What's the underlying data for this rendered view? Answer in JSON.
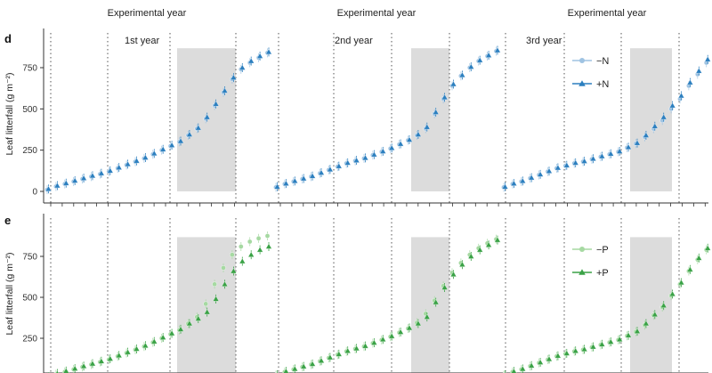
{
  "header": {
    "xlabels": [
      "Experimental year",
      "Experimental year",
      "Experimental year"
    ]
  },
  "chart_data": [
    {
      "type": "scatter",
      "panel": "d",
      "ylabel": "Leaf litterfall (g m⁻²)",
      "ylim": [
        0,
        900
      ],
      "yticks": [
        0,
        250,
        500,
        750
      ],
      "year_labels": [
        "1st year",
        "2nd year",
        "3rd year"
      ],
      "legend_position": "right",
      "colors": {
        "control": "#9fc3e2",
        "treatment": "#2c7fbf",
        "shade": "#dcdcdc",
        "divider": "#555555"
      },
      "series": [
        {
          "name": "−N",
          "marker": "circle",
          "values": [
            [
              10,
              30,
              45,
              60,
              75,
              90,
              105,
              120,
              140,
              160,
              180,
              200,
              225,
              250,
              275,
              300,
              340,
              380,
              440,
              520,
              600,
              680,
              740,
              780,
              810,
              840
            ],
            [
              25,
              45,
              60,
              75,
              90,
              110,
              130,
              150,
              170,
              185,
              200,
              220,
              240,
              260,
              285,
              310,
              340,
              380,
              470,
              560,
              640,
              700,
              750,
              790,
              820,
              850
            ],
            [
              25,
              45,
              60,
              80,
              100,
              120,
              140,
              155,
              170,
              180,
              195,
              210,
              225,
              240,
              265,
              290,
              330,
              380,
              430,
              500,
              560,
              640,
              710,
              780,
              830,
              860
            ]
          ]
        },
        {
          "name": "+N",
          "marker": "triangle",
          "values": [
            [
              15,
              35,
              50,
              65,
              80,
              95,
              110,
              125,
              145,
              165,
              185,
              205,
              230,
              255,
              280,
              305,
              345,
              385,
              450,
              530,
              610,
              690,
              750,
              790,
              820,
              845
            ],
            [
              28,
              48,
              63,
              78,
              93,
              113,
              133,
              153,
              173,
              188,
              203,
              223,
              243,
              263,
              288,
              313,
              345,
              390,
              480,
              570,
              650,
              705,
              755,
              795,
              825,
              855
            ],
            [
              28,
              48,
              63,
              83,
              103,
              123,
              143,
              158,
              173,
              183,
              198,
              213,
              228,
              243,
              268,
              293,
              340,
              395,
              450,
              520,
              580,
              660,
              730,
              800,
              840,
              870
            ]
          ]
        }
      ]
    },
    {
      "type": "scatter",
      "panel": "e",
      "ylabel": "Leaf litterfall (g m⁻²)",
      "ylim": [
        0,
        900
      ],
      "yticks": [
        250,
        500,
        750
      ],
      "legend_position": "right",
      "colors": {
        "control": "#a6d9a2",
        "treatment": "#3aa246",
        "shade": "#dcdcdc",
        "divider": "#555555"
      },
      "series": [
        {
          "name": "−P",
          "marker": "circle",
          "values": [
            [
              10,
              30,
              45,
              60,
              75,
              90,
              105,
              120,
              140,
              160,
              180,
              200,
              225,
              250,
              275,
              300,
              340,
              380,
              460,
              580,
              680,
              760,
              810,
              840,
              860,
              875
            ],
            [
              25,
              45,
              60,
              75,
              90,
              110,
              130,
              150,
              170,
              185,
              200,
              220,
              240,
              260,
              285,
              310,
              345,
              400,
              480,
              570,
              650,
              710,
              760,
              800,
              830,
              855
            ],
            [
              25,
              45,
              60,
              80,
              100,
              120,
              140,
              155,
              170,
              180,
              195,
              210,
              225,
              240,
              265,
              290,
              330,
              390,
              440,
              510,
              580,
              660,
              730,
              790,
              840,
              865
            ]
          ]
        },
        {
          "name": "+P",
          "marker": "triangle",
          "values": [
            [
              15,
              35,
              50,
              65,
              80,
              95,
              110,
              125,
              145,
              165,
              185,
              205,
              230,
              255,
              280,
              305,
              340,
              370,
              410,
              490,
              580,
              660,
              720,
              760,
              790,
              810
            ],
            [
              28,
              48,
              63,
              78,
              93,
              113,
              133,
              153,
              173,
              188,
              203,
              223,
              243,
              263,
              288,
              313,
              340,
              380,
              470,
              560,
              640,
              700,
              750,
              790,
              820,
              850
            ],
            [
              28,
              48,
              63,
              83,
              103,
              123,
              143,
              158,
              173,
              183,
              198,
              213,
              228,
              243,
              268,
              293,
              340,
              395,
              450,
              520,
              590,
              670,
              740,
              800,
              845,
              870
            ]
          ]
        }
      ]
    }
  ]
}
